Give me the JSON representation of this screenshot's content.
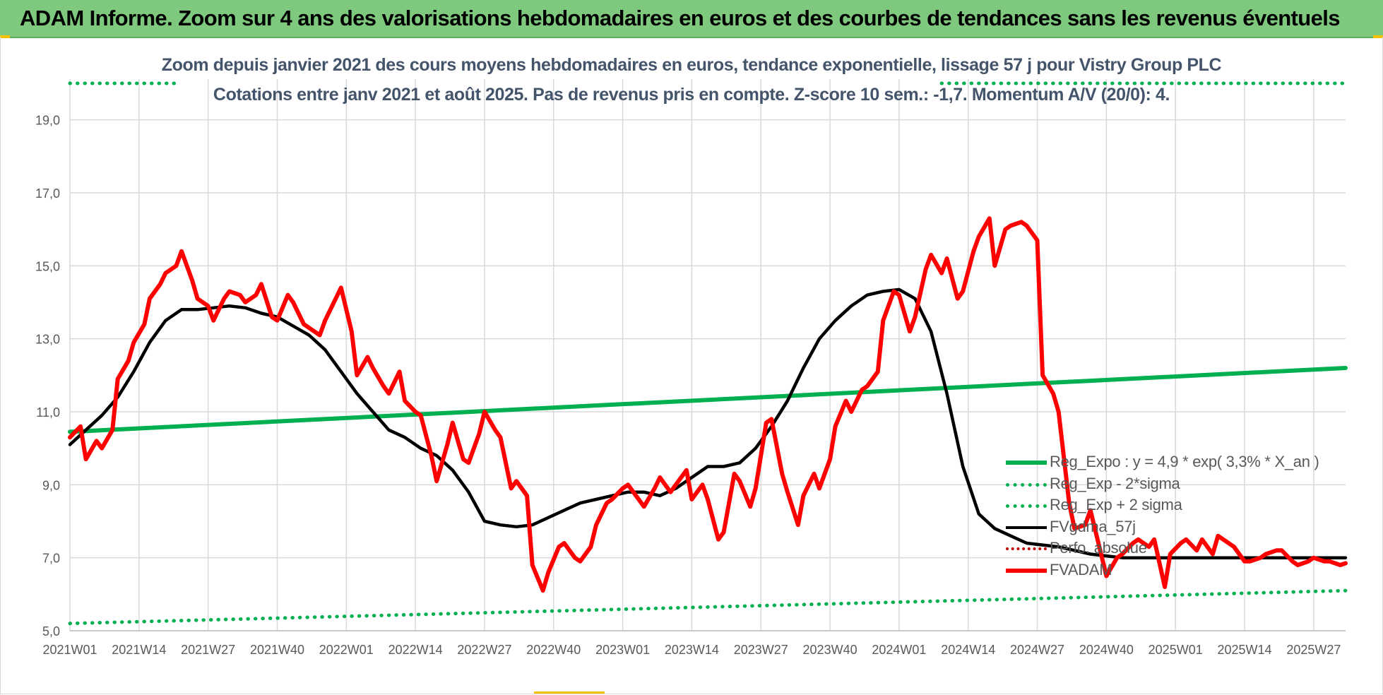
{
  "banner": {
    "title": "ADAM Informe. Zoom sur 4 ans des valorisations hebdomadaires en euros et des courbes de tendances sans les revenus éventuels"
  },
  "colors": {
    "banner": "#7fc97f",
    "regression": "#00b050",
    "price": "#ff0000",
    "moving_average": "#000000",
    "subtitle": "#44546a",
    "grid": "#d9d9d9"
  },
  "chart_data": {
    "type": "line",
    "title_lines": [
      "Zoom depuis janvier 2021 des cours moyens hebdomadaires en euros, tendance exponentielle, lissage 57 j pour Vistry Group PLC",
      "Cotations entre janv 2021 et août 2025.  Pas de revenus pris en compte. Z-score 10 sem.: -1,7. Momentum A/V (20/0): 4."
    ],
    "ylim": [
      5,
      20
    ],
    "y_ticks": [
      "5,0",
      "7,0",
      "9,0",
      "11,0",
      "13,0",
      "15,0",
      "17,0",
      "19,0"
    ],
    "y_tick_values": [
      5,
      7,
      9,
      11,
      13,
      15,
      17,
      19
    ],
    "x_ticks": [
      "2021W01",
      "2021W14",
      "2021W27",
      "2021W40",
      "2022W01",
      "2022W14",
      "2022W27",
      "2022W40",
      "2023W01",
      "2023W14",
      "2023W27",
      "2023W40",
      "2024W01",
      "2024W14",
      "2024W27",
      "2024W40",
      "2025W01",
      "2025W14",
      "2025W27"
    ],
    "x_range_weeks": [
      0,
      240
    ],
    "legend_position": "bottom-right",
    "grid": true,
    "legend": [
      {
        "name": "Reg_Expo : y = 4,9 * exp( 3,3% *  X_an )",
        "style": "solid",
        "color": "#00b050"
      },
      {
        "name": "Reg_Exp - 2*sigma",
        "style": "dotted",
        "color": "#00b050"
      },
      {
        "name": "Reg_Exp + 2 sigma",
        "style": "dotted",
        "color": "#00b050"
      },
      {
        "name": "FVgdma_57j",
        "style": "solid",
        "color": "#000000"
      },
      {
        "name": "Perfo. absolue",
        "style": "dotted",
        "color": "#c00000"
      },
      {
        "name": "FVADAM",
        "style": "solid",
        "color": "#ff0000"
      }
    ],
    "series": [
      {
        "name": "Reg_Expo : y = 4,9 * exp( 3,3% *  X_an )",
        "style": "solid",
        "color": "#00b050",
        "x": [
          0,
          240
        ],
        "y": [
          10.45,
          12.2
        ]
      },
      {
        "name": "Reg_Exp - 2*sigma",
        "style": "dotted",
        "color": "#00b050",
        "x": [
          0,
          240
        ],
        "y": [
          5.2,
          6.1
        ]
      },
      {
        "name": "Reg_Exp + 2 sigma",
        "style": "dotted",
        "color": "#00b050",
        "x_segments": [
          [
            0,
            20
          ],
          [
            164,
            240
          ]
        ],
        "y": 20.0
      },
      {
        "name": "FVgdma_57j",
        "style": "solid",
        "color": "#000000",
        "x": [
          0,
          3,
          6,
          9,
          12,
          15,
          18,
          21,
          24,
          27,
          30,
          33,
          36,
          39,
          42,
          45,
          48,
          51,
          54,
          57,
          60,
          63,
          66,
          69,
          72,
          75,
          78,
          81,
          84,
          87,
          90,
          93,
          96,
          99,
          102,
          105,
          108,
          111,
          114,
          117,
          120,
          123,
          126,
          129,
          132,
          135,
          138,
          141,
          144,
          147,
          150,
          153,
          156,
          159,
          162,
          165,
          168,
          171,
          174,
          177,
          180,
          183,
          186,
          189,
          192,
          195,
          198,
          201,
          204,
          207,
          210,
          213,
          216,
          219,
          222,
          225,
          228,
          231,
          234,
          237,
          240
        ],
        "y": [
          10.1,
          10.5,
          10.9,
          11.4,
          12.1,
          12.9,
          13.5,
          13.8,
          13.8,
          13.85,
          13.9,
          13.85,
          13.7,
          13.6,
          13.35,
          13.1,
          12.7,
          12.1,
          11.5,
          11.0,
          10.5,
          10.3,
          10.0,
          9.8,
          9.4,
          8.8,
          8.0,
          7.9,
          7.85,
          7.9,
          8.1,
          8.3,
          8.5,
          8.6,
          8.7,
          8.8,
          8.8,
          8.7,
          8.9,
          9.2,
          9.5,
          9.5,
          9.6,
          10.0,
          10.6,
          11.3,
          12.2,
          13.0,
          13.5,
          13.9,
          14.2,
          14.3,
          14.35,
          14.1,
          13.2,
          11.5,
          9.5,
          8.2,
          7.8,
          7.6,
          7.4,
          7.35,
          7.3,
          7.2,
          7.1,
          7.05,
          7.0,
          7.0,
          7.0,
          7.0,
          7.0,
          7.0,
          7.0,
          7.0,
          7.0,
          7.0,
          7.0,
          7.0,
          7.0,
          7.0,
          7.0
        ]
      },
      {
        "name": "FVADAM",
        "style": "solid",
        "color": "#ff0000",
        "x": [
          0,
          2,
          3,
          5,
          6,
          8,
          9,
          11,
          12,
          14,
          15,
          17,
          18,
          20,
          21,
          23,
          24,
          26,
          27,
          29,
          30,
          32,
          33,
          35,
          36,
          38,
          39,
          41,
          42,
          44,
          45,
          47,
          48,
          50,
          51,
          53,
          54,
          56,
          57,
          59,
          60,
          62,
          63,
          65,
          66,
          68,
          69,
          71,
          72,
          74,
          75,
          77,
          78,
          80,
          81,
          83,
          84,
          86,
          87,
          89,
          90,
          92,
          93,
          95,
          96,
          98,
          99,
          101,
          102,
          104,
          105,
          107,
          108,
          110,
          111,
          113,
          114,
          116,
          117,
          119,
          120,
          122,
          123,
          125,
          126,
          128,
          129,
          131,
          132,
          134,
          135,
          137,
          138,
          140,
          141,
          143,
          144,
          146,
          147,
          149,
          150,
          152,
          153,
          155,
          156,
          158,
          159,
          161,
          162,
          164,
          165,
          167,
          168,
          170,
          171,
          173,
          174,
          176,
          177,
          179,
          180,
          182,
          183,
          185,
          186,
          188,
          189,
          191,
          192,
          194,
          195,
          197,
          198,
          200,
          201,
          203,
          204,
          206,
          207,
          209,
          210,
          212,
          213,
          215,
          216,
          218,
          219,
          221,
          222,
          224,
          225,
          227,
          228,
          230,
          231,
          233,
          234,
          236,
          237,
          239,
          240
        ],
        "y": [
          10.3,
          10.6,
          9.7,
          10.2,
          10.0,
          10.5,
          11.9,
          12.4,
          12.9,
          13.4,
          14.1,
          14.5,
          14.8,
          15.0,
          15.4,
          14.6,
          14.1,
          13.9,
          13.5,
          14.1,
          14.3,
          14.2,
          14.0,
          14.2,
          14.5,
          13.6,
          13.5,
          14.2,
          14.0,
          13.4,
          13.3,
          13.1,
          13.5,
          14.1,
          14.4,
          13.2,
          12.0,
          12.5,
          12.2,
          11.7,
          11.5,
          12.1,
          11.3,
          11.0,
          10.9,
          9.8,
          9.1,
          10.1,
          10.7,
          9.7,
          9.6,
          10.4,
          11.0,
          10.5,
          10.3,
          8.9,
          9.1,
          8.7,
          6.8,
          6.1,
          6.6,
          7.3,
          7.4,
          7.0,
          6.9,
          7.3,
          7.9,
          8.5,
          8.6,
          8.9,
          9.0,
          8.6,
          8.4,
          8.9,
          9.2,
          8.8,
          9.0,
          9.4,
          8.6,
          9.0,
          8.6,
          7.5,
          7.7,
          9.3,
          9.1,
          8.4,
          8.9,
          10.7,
          10.8,
          9.3,
          8.8,
          7.9,
          8.7,
          9.3,
          8.9,
          9.7,
          10.6,
          11.3,
          11.0,
          11.6,
          11.7,
          12.1,
          13.5,
          14.3,
          14.2,
          13.2,
          13.6,
          14.9,
          15.3,
          14.8,
          15.2,
          14.1,
          14.3,
          15.4,
          15.8,
          16.3,
          15.0,
          16.0,
          16.1,
          16.2,
          16.1,
          15.7,
          12.0,
          11.5,
          11.0,
          8.5,
          7.8,
          7.9,
          8.3,
          7.1,
          6.5,
          7.0,
          7.1,
          7.4,
          7.5,
          7.3,
          7.5,
          6.2,
          7.1,
          7.4,
          7.5,
          7.2,
          7.5,
          7.1,
          7.6,
          7.4,
          7.3,
          6.9,
          6.9,
          7.0,
          7.1,
          7.2,
          7.2,
          6.9,
          6.8,
          6.9,
          7.0,
          6.9,
          6.9,
          6.8,
          6.85
        ]
      }
    ]
  }
}
